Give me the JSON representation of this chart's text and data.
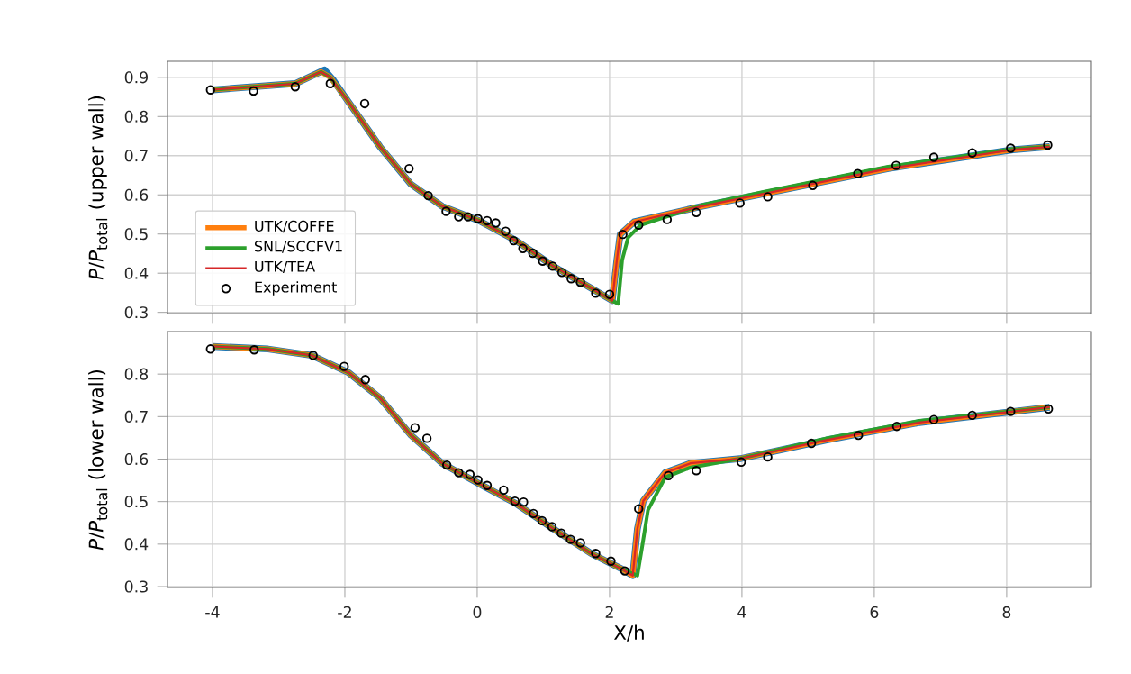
{
  "chart_data": [
    {
      "type": "line",
      "ylabel": "*P*/*P*$_{total}$ (upper wall)",
      "xlim": [
        -4.68,
        9.28
      ],
      "ylim": [
        0.297,
        0.941
      ],
      "xticks": [
        -4,
        -2,
        0,
        2,
        4,
        6,
        8
      ],
      "yticks": [
        0.3,
        0.4,
        0.5,
        0.6,
        0.7,
        0.8,
        0.9
      ],
      "grid": true,
      "legend": "bottom left",
      "tick_labels": "y",
      "series": [
        {
          "color": "#1f77b4",
          "x": [
            -4,
            -2.75,
            -2.31,
            -2.17,
            -1.94,
            -1.47,
            -1.0,
            -0.53,
            0.03,
            0.59,
            1.15,
            1.72,
            2.04,
            2.11,
            2.16,
            2.37,
            3.4,
            4.34,
            6.21,
            8.09,
            8.65
          ],
          "values": [
            0.868,
            0.884,
            0.919,
            0.892,
            0.836,
            0.723,
            0.627,
            0.571,
            0.534,
            0.483,
            0.418,
            0.362,
            0.33,
            0.434,
            0.499,
            0.531,
            0.571,
            0.603,
            0.667,
            0.715,
            0.723
          ]
        },
        {
          "name": "UTK/COFFE",
          "color": "#ff7f0e",
          "x": [
            -4,
            -2.75,
            -2.36,
            -2.22,
            -1.94,
            -1.47,
            -1.0,
            -0.53,
            0.03,
            0.59,
            1.15,
            1.72,
            2.04,
            2.11,
            2.16,
            2.37,
            3.4,
            4.34,
            6.21,
            8.09,
            8.65
          ],
          "values": [
            0.868,
            0.884,
            0.914,
            0.9,
            0.836,
            0.723,
            0.627,
            0.571,
            0.534,
            0.483,
            0.418,
            0.362,
            0.33,
            0.434,
            0.499,
            0.531,
            0.571,
            0.603,
            0.667,
            0.715,
            0.723
          ]
        },
        {
          "name": "SNL/SCCFV1",
          "color": "#2ca02c",
          "x": [
            -4,
            -2.75,
            -2.36,
            -2.22,
            -1.94,
            -1.47,
            -1.0,
            -0.53,
            0.03,
            0.59,
            1.15,
            1.72,
            2.04,
            2.13,
            2.19,
            2.28,
            2.47,
            3.4,
            4.34,
            6.21,
            8.09,
            8.65
          ],
          "values": [
            0.868,
            0.884,
            0.914,
            0.9,
            0.836,
            0.723,
            0.627,
            0.571,
            0.534,
            0.483,
            0.418,
            0.362,
            0.33,
            0.322,
            0.434,
            0.491,
            0.523,
            0.574,
            0.608,
            0.672,
            0.717,
            0.723
          ]
        },
        {
          "name": "UTK/TEA",
          "color": "#d62728",
          "x": [
            -4,
            -2.75,
            -2.36,
            -2.22,
            -1.94,
            -1.47,
            -1.0,
            -0.53,
            0.03,
            0.59,
            1.15,
            1.72,
            2.04,
            2.11,
            2.16,
            2.37,
            3.4,
            4.34,
            6.21,
            8.09,
            8.65
          ],
          "values": [
            0.868,
            0.884,
            0.914,
            0.9,
            0.836,
            0.723,
            0.627,
            0.571,
            0.534,
            0.483,
            0.418,
            0.362,
            0.33,
            0.434,
            0.499,
            0.531,
            0.571,
            0.603,
            0.667,
            0.715,
            0.723
          ]
        },
        {
          "name": "Experiment",
          "color": "#000000",
          "type": "scatter",
          "marker": "circle",
          "x": [
            -4.03,
            -3.38,
            -2.75,
            -2.22,
            -1.7,
            -1.03,
            -0.74,
            -0.47,
            -0.28,
            -0.14,
            0.01,
            0.15,
            0.28,
            0.43,
            0.55,
            0.69,
            0.84,
            0.99,
            1.14,
            1.28,
            1.42,
            1.56,
            1.79,
            2.0,
            2.2,
            2.44,
            2.87,
            3.31,
            3.97,
            4.39,
            5.07,
            5.75,
            6.33,
            6.9,
            7.48,
            8.06,
            8.62
          ],
          "values": [
            0.868,
            0.865,
            0.876,
            0.884,
            0.833,
            0.667,
            0.598,
            0.558,
            0.544,
            0.544,
            0.539,
            0.534,
            0.528,
            0.507,
            0.483,
            0.463,
            0.451,
            0.431,
            0.418,
            0.402,
            0.386,
            0.377,
            0.349,
            0.346,
            0.499,
            0.523,
            0.537,
            0.555,
            0.579,
            0.595,
            0.624,
            0.654,
            0.675,
            0.696,
            0.707,
            0.719,
            0.727
          ]
        }
      ]
    },
    {
      "type": "line",
      "xlabel": "X/h",
      "ylabel": "*P*/*P*$_{total}$ (lower wall)",
      "xlim": [
        -4.68,
        9.28
      ],
      "ylim": [
        0.298,
        0.9
      ],
      "xticks": [
        -4,
        -2,
        0,
        2,
        4,
        6,
        8
      ],
      "yticks": [
        0.3,
        0.4,
        0.5,
        0.6,
        0.7,
        0.8
      ],
      "grid": true,
      "series": [
        {
          "color": "#1f77b4",
          "x": [
            -4,
            -3.16,
            -2.5,
            -1.94,
            -1.47,
            -1.0,
            -0.53,
            0.03,
            0.59,
            1.15,
            1.72,
            2.19,
            2.35,
            2.42,
            2.51,
            2.84,
            3.22,
            3.97,
            5.28,
            6.68,
            8.65
          ],
          "values": [
            0.865,
            0.859,
            0.844,
            0.803,
            0.744,
            0.656,
            0.59,
            0.542,
            0.495,
            0.436,
            0.378,
            0.341,
            0.326,
            0.436,
            0.502,
            0.568,
            0.59,
            0.601,
            0.645,
            0.686,
            0.722
          ]
        },
        {
          "color": "#ff7f0e",
          "x": [
            -4,
            -3.16,
            -2.5,
            -1.94,
            -1.47,
            -1.0,
            -0.53,
            0.03,
            0.59,
            1.15,
            1.72,
            2.19,
            2.35,
            2.42,
            2.51,
            2.84,
            3.22,
            3.97,
            5.28,
            6.68,
            8.65
          ],
          "values": [
            0.865,
            0.859,
            0.844,
            0.803,
            0.744,
            0.656,
            0.59,
            0.542,
            0.495,
            0.436,
            0.378,
            0.341,
            0.326,
            0.436,
            0.502,
            0.568,
            0.59,
            0.601,
            0.645,
            0.686,
            0.722
          ]
        },
        {
          "color": "#2ca02c",
          "x": [
            -4,
            -3.16,
            -2.5,
            -1.94,
            -1.47,
            -1.0,
            -0.53,
            0.03,
            0.59,
            1.15,
            1.72,
            2.19,
            2.42,
            2.49,
            2.58,
            2.84,
            3.22,
            3.97,
            5.28,
            6.68,
            8.65
          ],
          "values": [
            0.865,
            0.859,
            0.844,
            0.803,
            0.744,
            0.656,
            0.59,
            0.542,
            0.495,
            0.436,
            0.378,
            0.341,
            0.326,
            0.392,
            0.48,
            0.557,
            0.58,
            0.601,
            0.649,
            0.69,
            0.722
          ]
        },
        {
          "color": "#d62728",
          "x": [
            -4,
            -3.16,
            -2.5,
            -1.94,
            -1.47,
            -1.0,
            -0.53,
            0.03,
            0.59,
            1.15,
            1.72,
            2.19,
            2.35,
            2.42,
            2.51,
            2.84,
            3.22,
            3.97,
            5.28,
            6.68,
            8.65
          ],
          "values": [
            0.865,
            0.859,
            0.844,
            0.803,
            0.744,
            0.656,
            0.59,
            0.542,
            0.495,
            0.436,
            0.378,
            0.341,
            0.326,
            0.436,
            0.502,
            0.568,
            0.59,
            0.601,
            0.645,
            0.686,
            0.722
          ]
        },
        {
          "color": "#000000",
          "type": "scatter",
          "marker": "circle",
          "x": [
            -4.03,
            -3.37,
            -2.48,
            -2.01,
            -1.69,
            -0.94,
            -0.76,
            -0.46,
            -0.28,
            -0.11,
            0.01,
            0.15,
            0.4,
            0.57,
            0.7,
            0.85,
            0.98,
            1.13,
            1.27,
            1.41,
            1.56,
            1.79,
            2.02,
            2.23,
            2.44,
            2.89,
            3.31,
            3.99,
            4.39,
            5.05,
            5.76,
            6.34,
            6.9,
            7.48,
            8.06,
            8.63
          ],
          "values": [
            0.859,
            0.857,
            0.844,
            0.818,
            0.787,
            0.674,
            0.649,
            0.586,
            0.568,
            0.564,
            0.551,
            0.538,
            0.527,
            0.501,
            0.499,
            0.472,
            0.455,
            0.441,
            0.426,
            0.411,
            0.403,
            0.378,
            0.36,
            0.337,
            0.483,
            0.561,
            0.573,
            0.593,
            0.605,
            0.637,
            0.656,
            0.677,
            0.693,
            0.703,
            0.712,
            0.718
          ]
        }
      ]
    }
  ]
}
